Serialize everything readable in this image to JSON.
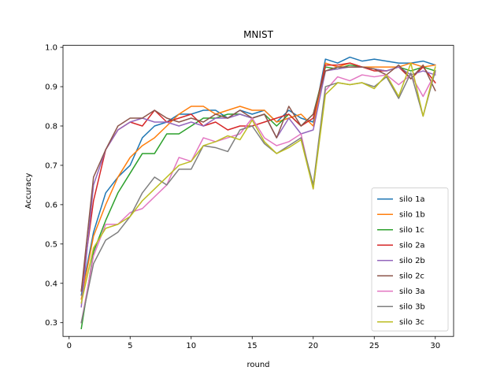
{
  "chart_data": {
    "type": "line",
    "title": "MNIST",
    "xlabel": "round",
    "ylabel": "Accuracy",
    "xlim": [
      -0.5,
      31.5
    ],
    "ylim": [
      0.265,
      1.005
    ],
    "xticks": [
      0,
      5,
      10,
      15,
      20,
      25,
      30
    ],
    "yticks": [
      0.3,
      0.4,
      0.5,
      0.6,
      0.7,
      0.8,
      0.9,
      1.0
    ],
    "xtick_labels": [
      "0",
      "5",
      "10",
      "15",
      "20",
      "25",
      "30"
    ],
    "ytick_labels": [
      "0.3",
      "0.4",
      "0.5",
      "0.6",
      "0.7",
      "0.8",
      "0.9",
      "1.0"
    ],
    "grid": false,
    "legend_position": "lower-right",
    "x": [
      1,
      2,
      3,
      4,
      5,
      6,
      7,
      8,
      9,
      10,
      11,
      12,
      13,
      14,
      15,
      16,
      17,
      18,
      19,
      20,
      21,
      22,
      23,
      24,
      25,
      26,
      27,
      28,
      29,
      30
    ],
    "series": [
      {
        "name": "silo 1a",
        "color": "#1f77b4",
        "values": [
          0.37,
          0.53,
          0.63,
          0.67,
          0.7,
          0.77,
          0.8,
          0.81,
          0.83,
          0.83,
          0.84,
          0.84,
          0.82,
          0.84,
          0.83,
          0.84,
          0.81,
          0.84,
          0.82,
          0.81,
          0.97,
          0.96,
          0.975,
          0.965,
          0.97,
          0.965,
          0.96,
          0.96,
          0.965,
          0.955
        ]
      },
      {
        "name": "silo 1b",
        "color": "#ff7f0e",
        "values": [
          0.36,
          0.52,
          0.6,
          0.67,
          0.72,
          0.75,
          0.77,
          0.8,
          0.83,
          0.85,
          0.85,
          0.83,
          0.84,
          0.85,
          0.84,
          0.84,
          0.81,
          0.82,
          0.83,
          0.8,
          0.96,
          0.95,
          0.96,
          0.95,
          0.95,
          0.95,
          0.95,
          0.96,
          0.95,
          0.955
        ]
      },
      {
        "name": "silo 1c",
        "color": "#2ca02c",
        "values": [
          0.285,
          0.48,
          0.56,
          0.63,
          0.68,
          0.73,
          0.73,
          0.78,
          0.78,
          0.8,
          0.82,
          0.82,
          0.83,
          0.83,
          0.82,
          0.83,
          0.8,
          0.83,
          0.8,
          0.83,
          0.95,
          0.945,
          0.955,
          0.95,
          0.945,
          0.94,
          0.95,
          0.94,
          0.95,
          0.94
        ]
      },
      {
        "name": "silo 2a",
        "color": "#d62728",
        "values": [
          0.38,
          0.61,
          0.74,
          0.79,
          0.81,
          0.8,
          0.84,
          0.81,
          0.82,
          0.83,
          0.8,
          0.81,
          0.79,
          0.8,
          0.8,
          0.81,
          0.82,
          0.83,
          0.8,
          0.82,
          0.955,
          0.955,
          0.96,
          0.95,
          0.94,
          0.94,
          0.95,
          0.92,
          0.95,
          0.91
        ]
      },
      {
        "name": "silo 2b",
        "color": "#9467bd",
        "values": [
          0.34,
          0.65,
          0.74,
          0.79,
          0.81,
          0.82,
          0.81,
          0.81,
          0.8,
          0.81,
          0.8,
          0.82,
          0.82,
          0.83,
          0.82,
          0.83,
          0.77,
          0.82,
          0.78,
          0.79,
          0.94,
          0.945,
          0.95,
          0.95,
          0.945,
          0.94,
          0.95,
          0.93,
          0.94,
          0.93
        ]
      },
      {
        "name": "silo 2c",
        "color": "#8c564b",
        "values": [
          0.38,
          0.67,
          0.74,
          0.8,
          0.82,
          0.82,
          0.84,
          0.82,
          0.81,
          0.82,
          0.81,
          0.83,
          0.82,
          0.84,
          0.82,
          0.83,
          0.77,
          0.85,
          0.8,
          0.83,
          0.94,
          0.95,
          0.95,
          0.95,
          0.945,
          0.93,
          0.955,
          0.92,
          0.955,
          0.89
        ]
      },
      {
        "name": "silo 3a",
        "color": "#e377c2",
        "values": [
          0.3,
          0.47,
          0.55,
          0.55,
          0.58,
          0.59,
          0.62,
          0.65,
          0.72,
          0.71,
          0.77,
          0.76,
          0.77,
          0.78,
          0.82,
          0.77,
          0.75,
          0.76,
          0.78,
          0.64,
          0.89,
          0.925,
          0.915,
          0.93,
          0.925,
          0.93,
          0.905,
          0.93,
          0.875,
          0.935
        ]
      },
      {
        "name": "silo 3b",
        "color": "#7f7f7f",
        "values": [
          0.3,
          0.45,
          0.51,
          0.53,
          0.57,
          0.63,
          0.67,
          0.65,
          0.69,
          0.69,
          0.75,
          0.745,
          0.735,
          0.79,
          0.8,
          0.755,
          0.73,
          0.75,
          0.77,
          0.65,
          0.9,
          0.91,
          0.905,
          0.91,
          0.9,
          0.925,
          0.87,
          0.935,
          0.825,
          0.94
        ]
      },
      {
        "name": "silo 3c",
        "color": "#bcbd22",
        "values": [
          0.35,
          0.49,
          0.54,
          0.55,
          0.57,
          0.61,
          0.64,
          0.67,
          0.7,
          0.71,
          0.75,
          0.76,
          0.775,
          0.765,
          0.815,
          0.76,
          0.73,
          0.745,
          0.765,
          0.64,
          0.88,
          0.91,
          0.905,
          0.91,
          0.895,
          0.93,
          0.875,
          0.96,
          0.825,
          0.95
        ]
      }
    ]
  }
}
